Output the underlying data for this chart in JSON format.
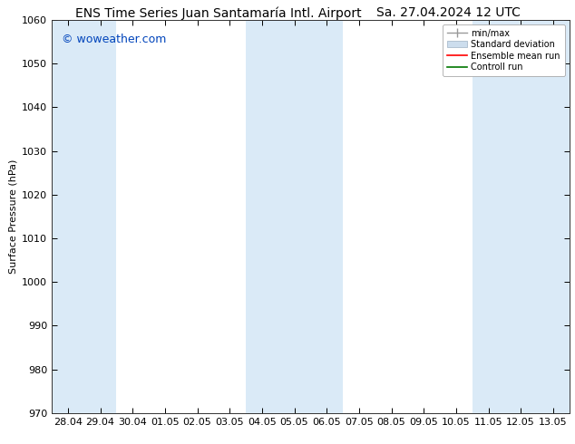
{
  "title_left": "ENS Time Series Juan Santamaría Intl. Airport",
  "title_right": "Sa. 27.04.2024 12 UTC",
  "ylabel": "Surface Pressure (hPa)",
  "ylim": [
    970,
    1060
  ],
  "yticks": [
    970,
    980,
    990,
    1000,
    1010,
    1020,
    1030,
    1040,
    1050,
    1060
  ],
  "xtick_labels": [
    "28.04",
    "29.04",
    "30.04",
    "01.05",
    "02.05",
    "03.05",
    "04.05",
    "05.05",
    "06.05",
    "07.05",
    "08.05",
    "09.05",
    "10.05",
    "11.05",
    "12.05",
    "13.05"
  ],
  "watermark": "© woweather.com",
  "bg_color": "#ffffff",
  "plot_bg_color": "#ffffff",
  "band_color": "#daeaf7",
  "band_ranges_idx": [
    [
      0,
      1
    ],
    [
      6,
      8
    ],
    [
      13,
      15
    ]
  ],
  "legend_labels": [
    "min/max",
    "Standard deviation",
    "Ensemble mean run",
    "Controll run"
  ],
  "legend_colors_line": [
    "#999999",
    "#bbccdd",
    "#ff0000",
    "#007700"
  ],
  "title_fontsize": 10,
  "tick_fontsize": 8,
  "watermark_color": "#0044bb",
  "watermark_fontsize": 9
}
